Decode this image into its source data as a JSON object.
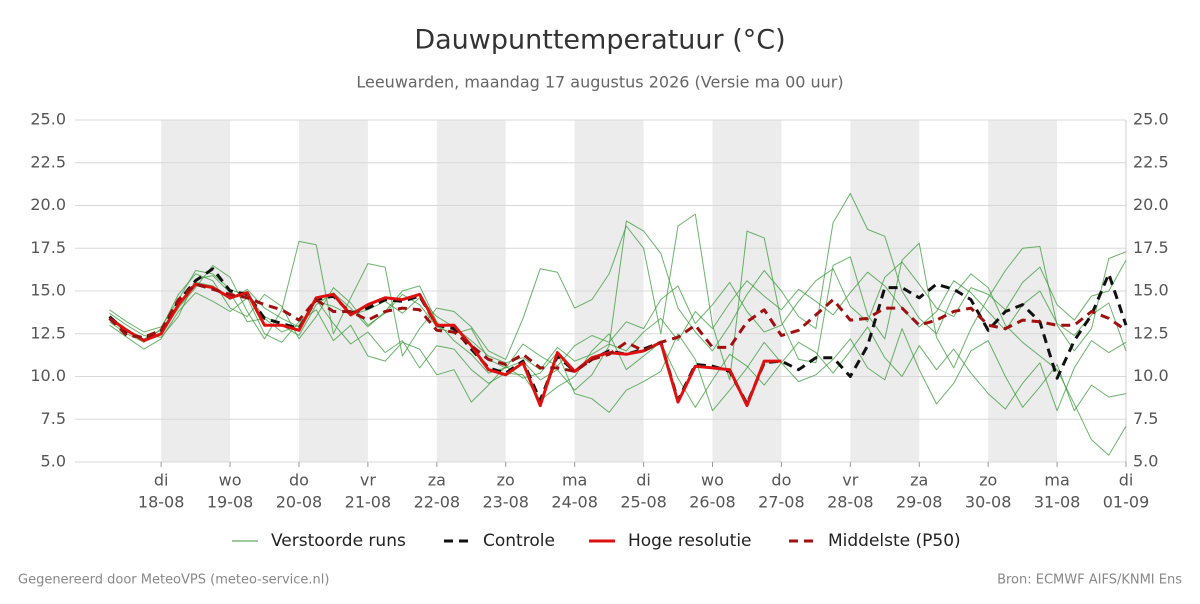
{
  "chart_data": {
    "type": "line",
    "title": "Dauwpunttemperatuur (°C)",
    "subtitle": "Leeuwarden, maandag 17 augustus 2026 (Versie ma 00 uur)",
    "footer_left": "Gegenereerd door MeteoVPS (meteo-service.nl)",
    "footer_right": "Bron: ECMWF AIFS/KNMI Ens",
    "grid": true,
    "legend": "bottom",
    "xlim": [
      16.75,
      32
    ],
    "xticks": [
      {
        "value": 18,
        "label": [
          "di",
          "18-08"
        ]
      },
      {
        "value": 19,
        "label": [
          "wo",
          "19-08"
        ]
      },
      {
        "value": 20,
        "label": [
          "do",
          "20-08"
        ]
      },
      {
        "value": 21,
        "label": [
          "vr",
          "21-08"
        ]
      },
      {
        "value": 22,
        "label": [
          "za",
          "22-08"
        ]
      },
      {
        "value": 23,
        "label": [
          "zo",
          "23-08"
        ]
      },
      {
        "value": 24,
        "label": [
          "ma",
          "24-08"
        ]
      },
      {
        "value": 25,
        "label": [
          "di",
          "25-08"
        ]
      },
      {
        "value": 26,
        "label": [
          "wo",
          "26-08"
        ]
      },
      {
        "value": 27,
        "label": [
          "do",
          "27-08"
        ]
      },
      {
        "value": 28,
        "label": [
          "vr",
          "28-08"
        ]
      },
      {
        "value": 29,
        "label": [
          "za",
          "29-08"
        ]
      },
      {
        "value": 30,
        "label": [
          "zo",
          "30-08"
        ]
      },
      {
        "value": 31,
        "label": [
          "ma",
          "31-08"
        ]
      },
      {
        "value": 32,
        "label": [
          "di",
          "01-09"
        ]
      }
    ],
    "ylim": [
      5,
      25
    ],
    "yticks": [
      {
        "value": 5,
        "label": "5.0"
      },
      {
        "value": 7.5,
        "label": "7.5"
      },
      {
        "value": 10,
        "label": "10.0"
      },
      {
        "value": 12.5,
        "label": "12.5"
      },
      {
        "value": 15,
        "label": "15.0"
      },
      {
        "value": 17.5,
        "label": "17.5"
      },
      {
        "value": 20,
        "label": "20.0"
      },
      {
        "value": 22.5,
        "label": "22.5"
      },
      {
        "value": 25,
        "label": "25.0"
      }
    ],
    "x": [
      17.25,
      17.5,
      17.75,
      18,
      18.25,
      18.5,
      18.75,
      19,
      19.25,
      19.5,
      19.75,
      20,
      20.25,
      20.5,
      20.75,
      21,
      21.25,
      21.5,
      21.75,
      22,
      22.25,
      22.5,
      22.75,
      23,
      23.25,
      23.5,
      23.75,
      24,
      24.25,
      24.5,
      24.75,
      25,
      25.25,
      25.5,
      25.75,
      26,
      26.25,
      26.5,
      26.75,
      27,
      27.25,
      27.5,
      27.75,
      28,
      28.25,
      28.5,
      28.75,
      29,
      29.25,
      29.5,
      29.75,
      30,
      30.25,
      30.5,
      30.75,
      31,
      31.25,
      31.5,
      31.75,
      32
    ],
    "series": [
      {
        "name": "Verstoorde runs",
        "color": "#3a9a3a",
        "members": [
          [
            13.9,
            13.2,
            12.6,
            12.9,
            14.5,
            16.2,
            16.0,
            15.1,
            14.7,
            13.5,
            13.0,
            12.4,
            14.2,
            14.9,
            14.0,
            12.9,
            13.8,
            15.0,
            15.3,
            13.2,
            12.1,
            11.3,
            10.2,
            10.5,
            10.9,
            9.8,
            10.4,
            9.2,
            10.1,
            11.8,
            19.1,
            18.5,
            17.2,
            14.0,
            12.6,
            11.5,
            13.0,
            14.8,
            16.2,
            15.0,
            13.5,
            12.8,
            19.0,
            20.7,
            18.6,
            18.2,
            15.0,
            13.4,
            12.5,
            14.8,
            16.0,
            15.2,
            13.0,
            12.0,
            11.2,
            10.4,
            8.4,
            6.3,
            5.4,
            7.1
          ],
          [
            13.5,
            12.8,
            12.1,
            12.5,
            14.0,
            15.2,
            16.5,
            15.8,
            13.8,
            12.2,
            13.9,
            17.9,
            17.7,
            12.5,
            14.6,
            16.6,
            16.4,
            11.2,
            12.8,
            14.0,
            13.8,
            12.9,
            11.5,
            11.0,
            13.4,
            16.3,
            16.1,
            14.0,
            14.5,
            16.0,
            18.8,
            17.5,
            12.5,
            18.8,
            19.5,
            13.0,
            9.8,
            18.5,
            18.1,
            13.2,
            11.0,
            10.8,
            16.5,
            17.0,
            13.6,
            12.2,
            16.8,
            17.8,
            12.3,
            10.5,
            12.8,
            14.6,
            16.2,
            17.5,
            17.6,
            13.0,
            11.5,
            12.8,
            16.9,
            17.3
          ],
          [
            13.0,
            12.3,
            11.6,
            12.2,
            13.8,
            14.9,
            14.4,
            13.8,
            14.6,
            12.5,
            12.0,
            13.2,
            13.9,
            12.1,
            13.0,
            11.2,
            10.9,
            12.0,
            11.6,
            10.1,
            10.4,
            8.5,
            9.5,
            10.6,
            9.9,
            10.2,
            11.4,
            9.0,
            8.7,
            7.9,
            9.2,
            9.7,
            10.3,
            12.5,
            11.0,
            8.0,
            9.2,
            10.5,
            12.0,
            10.8,
            9.7,
            10.1,
            11.0,
            12.2,
            10.5,
            9.8,
            12.8,
            10.4,
            8.4,
            9.6,
            11.5,
            12.1,
            10.0,
            8.2,
            9.4,
            10.7,
            8.0,
            9.5,
            8.8,
            9.0
          ],
          [
            13.2,
            12.5,
            12.0,
            12.8,
            14.8,
            16.0,
            15.6,
            14.0,
            13.5,
            14.8,
            14.1,
            12.2,
            13.5,
            15.2,
            14.3,
            13.0,
            13.7,
            14.8,
            14.2,
            12.9,
            12.5,
            12.8,
            11.0,
            10.5,
            11.9,
            11.2,
            10.6,
            11.8,
            12.4,
            12.0,
            13.2,
            12.8,
            14.5,
            15.3,
            13.1,
            14.2,
            15.5,
            13.8,
            12.6,
            13.0,
            14.4,
            15.6,
            16.3,
            14.1,
            13.2,
            15.8,
            16.7,
            15.4,
            14.0,
            13.5,
            15.2,
            14.8,
            13.9,
            15.5,
            16.4,
            14.2,
            13.3,
            14.7,
            15.0,
            16.8
          ],
          [
            13.7,
            13.0,
            12.4,
            12.3,
            13.5,
            15.7,
            15.9,
            14.9,
            13.2,
            13.4,
            12.6,
            13.0,
            14.5,
            13.1,
            11.9,
            12.6,
            11.4,
            12.1,
            10.5,
            11.8,
            11.6,
            10.4,
            9.6,
            10.2,
            10.1,
            8.6,
            9.4,
            10.0,
            11.5,
            12.5,
            10.4,
            11.2,
            12.0,
            9.9,
            8.2,
            9.8,
            11.3,
            10.6,
            9.5,
            10.8,
            12.0,
            11.4,
            10.2,
            11.5,
            12.9,
            11.1,
            10.0,
            11.8,
            10.4,
            11.6,
            10.2,
            9.0,
            8.1,
            9.6,
            10.8,
            8.0,
            10.5,
            12.1,
            11.4,
            12.0
          ],
          [
            13.4,
            12.7,
            12.2,
            12.7,
            14.2,
            15.5,
            15.3,
            14.5,
            15.1,
            14.0,
            13.4,
            12.9,
            14.4,
            14.1,
            13.6,
            13.9,
            14.4,
            13.7,
            14.6,
            13.5,
            12.9,
            12.1,
            11.2,
            10.8,
            11.1,
            10.4,
            11.7,
            10.9,
            11.3,
            11.9,
            11.5,
            12.6,
            13.4,
            12.1,
            13.8,
            12.8,
            14.3,
            15.6,
            14.7,
            13.9,
            15.1,
            14.4,
            13.6,
            14.9,
            16.1,
            15.3,
            14.0,
            12.9,
            13.8,
            15.6,
            14.9,
            13.8,
            12.7,
            14.2,
            15.0,
            13.1,
            12.4,
            13.6,
            14.3,
            11.5
          ]
        ]
      },
      {
        "name": "Controle",
        "color": "#111111",
        "dash": true,
        "values": [
          13.5,
          12.6,
          12.2,
          12.6,
          14.4,
          15.6,
          16.3,
          15.0,
          14.8,
          13.4,
          13.1,
          12.8,
          14.5,
          14.7,
          13.7,
          14.0,
          14.5,
          14.4,
          14.7,
          13.0,
          12.8,
          11.6,
          10.5,
          10.2,
          10.9,
          8.6,
          11.2,
          10.3,
          11.0,
          11.5,
          11.3,
          11.6,
          12.0,
          8.6,
          10.7,
          10.6,
          10.3,
          8.4,
          10.8,
          10.9,
          10.4,
          11.1,
          11.1,
          10.0,
          11.8,
          15.2,
          15.2,
          14.6,
          15.4,
          15.1,
          14.5,
          12.7,
          13.8,
          14.2,
          13.2,
          9.9,
          12.1,
          13.6,
          16.0,
          13.0
        ]
      },
      {
        "name": "Hoge resolutie",
        "color": "#e01010",
        "values": [
          13.4,
          12.7,
          12.1,
          12.5,
          14.2,
          15.4,
          15.2,
          14.6,
          14.9,
          13.0,
          13.0,
          12.7,
          14.6,
          14.8,
          13.6,
          14.2,
          14.6,
          14.5,
          14.8,
          13.0,
          13.0,
          11.8,
          10.4,
          10.1,
          10.8,
          8.3,
          11.4,
          10.3,
          11.1,
          11.4,
          11.3,
          11.5,
          12.0,
          8.5,
          10.6,
          10.5,
          10.4,
          8.3,
          10.9,
          10.9,
          null,
          null,
          null,
          null,
          null,
          null,
          null,
          null,
          null,
          null,
          null,
          null,
          null,
          null,
          null,
          null,
          null,
          null,
          null,
          null
        ]
      },
      {
        "name": "Middelste (P50)",
        "color": "#a01010",
        "dash": true,
        "values": [
          13.4,
          12.4,
          12.3,
          12.7,
          14.5,
          15.4,
          15.1,
          14.8,
          14.6,
          14.2,
          13.9,
          13.3,
          14.5,
          13.8,
          13.8,
          13.3,
          13.8,
          14.0,
          13.9,
          12.7,
          12.6,
          11.8,
          11.0,
          10.7,
          11.3,
          10.5,
          10.5,
          10.3,
          11.0,
          11.3,
          12.0,
          11.5,
          12.0,
          12.3,
          13.0,
          11.7,
          11.7,
          13.2,
          13.9,
          12.4,
          12.7,
          13.6,
          14.5,
          13.3,
          13.4,
          14.0,
          14.0,
          13.0,
          13.3,
          13.8,
          14.0,
          13.0,
          12.8,
          13.3,
          13.2,
          13.0,
          13.0,
          13.8,
          13.4,
          12.7
        ]
      }
    ]
  }
}
